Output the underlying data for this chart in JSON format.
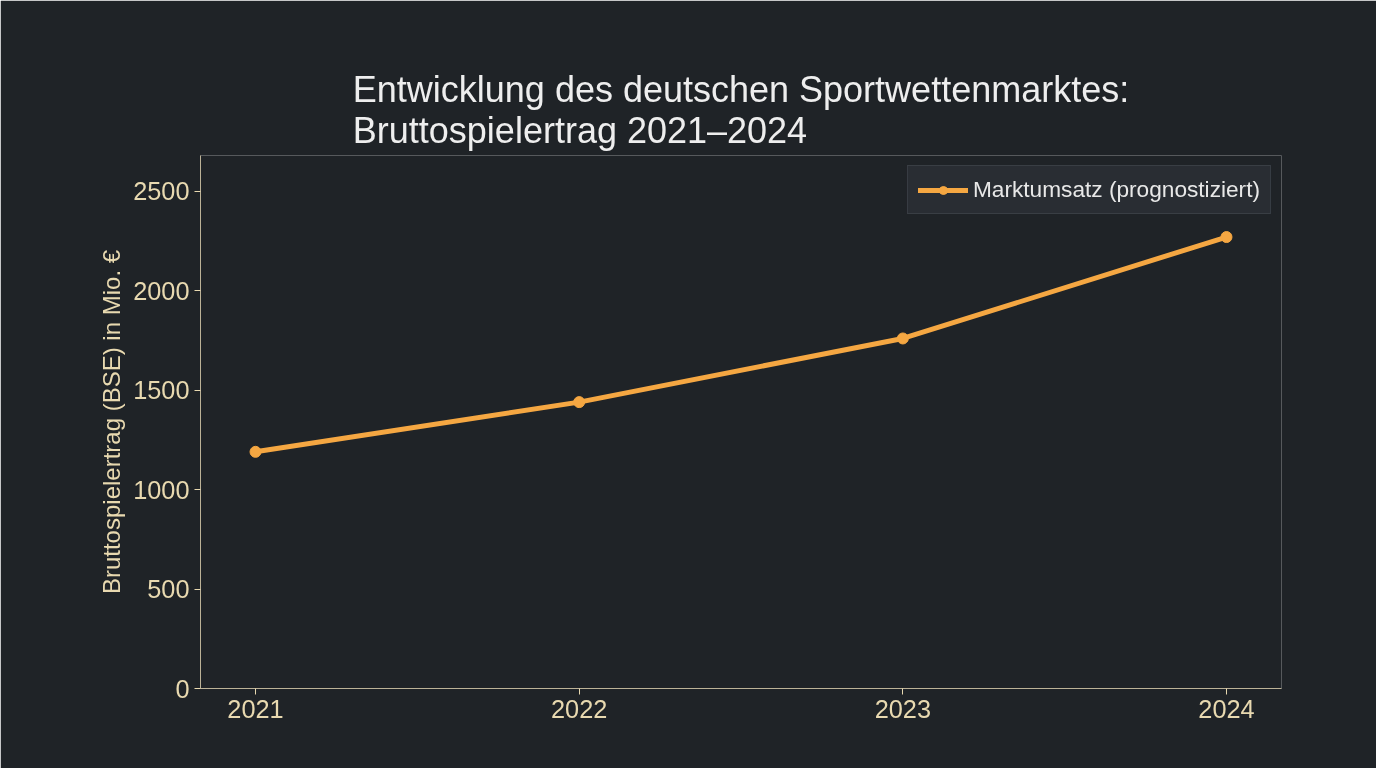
{
  "chart_data": {
    "type": "line",
    "title": "Entwicklung des deutschen Sportwettenmarktes:\nBruttospielertrag 2021–2024",
    "ylabel": "Bruttospielertrag (BSE) in Mio. €",
    "x": [
      2021,
      2022,
      2023,
      2024
    ],
    "series": [
      {
        "name": "Marktumsatz (prognostiziert)",
        "color": "#f5a742",
        "values": [
          1190,
          1440,
          1760,
          2270
        ]
      }
    ],
    "xlim": [
      2020.83,
      2024.17
    ],
    "xticks": [
      2021,
      2022,
      2023,
      2024
    ],
    "ylim": [
      0,
      2680
    ],
    "yticks": [
      0,
      500,
      1000,
      1500,
      2000,
      2500
    ],
    "grid": false,
    "legend": "top right",
    "marker": "circle",
    "line_style": "solid"
  }
}
